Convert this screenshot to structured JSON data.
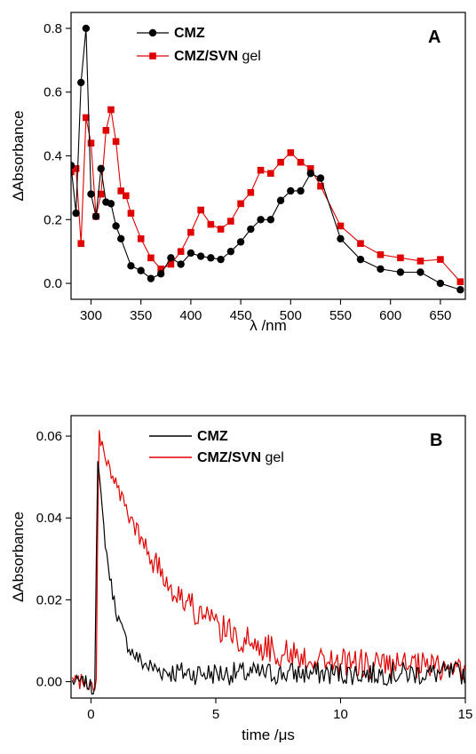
{
  "chart_data": [
    {
      "type": "line",
      "panel_label": "A",
      "xlabel": "λ /nm",
      "ylabel": "ΔAbsorbance",
      "xlim": [
        280,
        675
      ],
      "ylim": [
        -0.05,
        0.85
      ],
      "xticks": [
        300,
        350,
        400,
        450,
        500,
        550,
        600,
        650
      ],
      "yticks": [
        0.0,
        0.2,
        0.4,
        0.6,
        0.8
      ],
      "ytick_labels": [
        "0.0",
        "0.2",
        "0.4",
        "0.6",
        "0.8"
      ],
      "legend_position": "top-center",
      "series": [
        {
          "name": "CMZ",
          "legend_bold": "CMZ",
          "legend_rest": "",
          "color": "#000000",
          "marker": "circle",
          "x": [
            280,
            285,
            290,
            295,
            300,
            305,
            310,
            315,
            320,
            325,
            330,
            340,
            350,
            360,
            370,
            380,
            390,
            400,
            410,
            420,
            430,
            440,
            450,
            460,
            470,
            480,
            490,
            500,
            510,
            520,
            530,
            550,
            570,
            590,
            610,
            630,
            650,
            670
          ],
          "y": [
            0.37,
            0.22,
            0.63,
            0.8,
            0.28,
            0.21,
            0.36,
            0.255,
            0.25,
            0.18,
            0.14,
            0.055,
            0.04,
            0.015,
            0.03,
            0.08,
            0.06,
            0.095,
            0.085,
            0.08,
            0.075,
            0.1,
            0.13,
            0.17,
            0.2,
            0.2,
            0.26,
            0.29,
            0.29,
            0.345,
            0.33,
            0.14,
            0.075,
            0.045,
            0.035,
            0.035,
            0.0,
            -0.02
          ]
        },
        {
          "name": "CMZ/SVN gel",
          "legend_bold": "CMZ/SVN",
          "legend_rest": " gel",
          "color": "#e00000",
          "marker": "square",
          "x": [
            280,
            285,
            290,
            295,
            300,
            305,
            310,
            315,
            320,
            325,
            330,
            335,
            340,
            350,
            360,
            370,
            380,
            390,
            400,
            410,
            420,
            430,
            440,
            450,
            460,
            470,
            480,
            490,
            500,
            510,
            520,
            530,
            550,
            570,
            590,
            610,
            630,
            650,
            670
          ],
          "y": [
            0.35,
            0.36,
            0.125,
            0.52,
            0.44,
            0.21,
            0.28,
            0.48,
            0.545,
            0.445,
            0.29,
            0.275,
            0.22,
            0.14,
            0.08,
            0.045,
            0.06,
            0.1,
            0.16,
            0.23,
            0.185,
            0.17,
            0.195,
            0.25,
            0.285,
            0.355,
            0.345,
            0.38,
            0.41,
            0.38,
            0.36,
            0.305,
            0.18,
            0.125,
            0.09,
            0.08,
            0.07,
            0.075,
            0.005
          ]
        }
      ]
    },
    {
      "type": "line",
      "panel_label": "B",
      "xlabel": "time /μs",
      "ylabel": "ΔAbsorbance",
      "xlim": [
        -0.8,
        15
      ],
      "ylim": [
        -0.004,
        0.065
      ],
      "xticks": [
        0,
        5,
        10,
        15
      ],
      "yticks": [
        0.0,
        0.02,
        0.04,
        0.06
      ],
      "ytick_labels": [
        "0.00",
        "0.02",
        "0.04",
        "0.06"
      ],
      "legend_position": "top-center",
      "series": [
        {
          "name": "CMZ",
          "legend_bold": "CMZ",
          "legend_rest": "",
          "color": "#000000",
          "peak_time": 0.25,
          "peak_value": 0.057,
          "decay_tau": 0.6,
          "baseline": 0.002,
          "noise": 0.0022,
          "dip_value": -0.003
        },
        {
          "name": "CMZ/SVN gel",
          "legend_bold": "CMZ/SVN",
          "legend_rest": " gel",
          "color": "#e00000",
          "peak_time": 0.3,
          "peak_value": 0.061,
          "decay_tau": 2.8,
          "baseline": 0.003,
          "noise": 0.0028,
          "dip_value": -0.002
        }
      ]
    }
  ]
}
